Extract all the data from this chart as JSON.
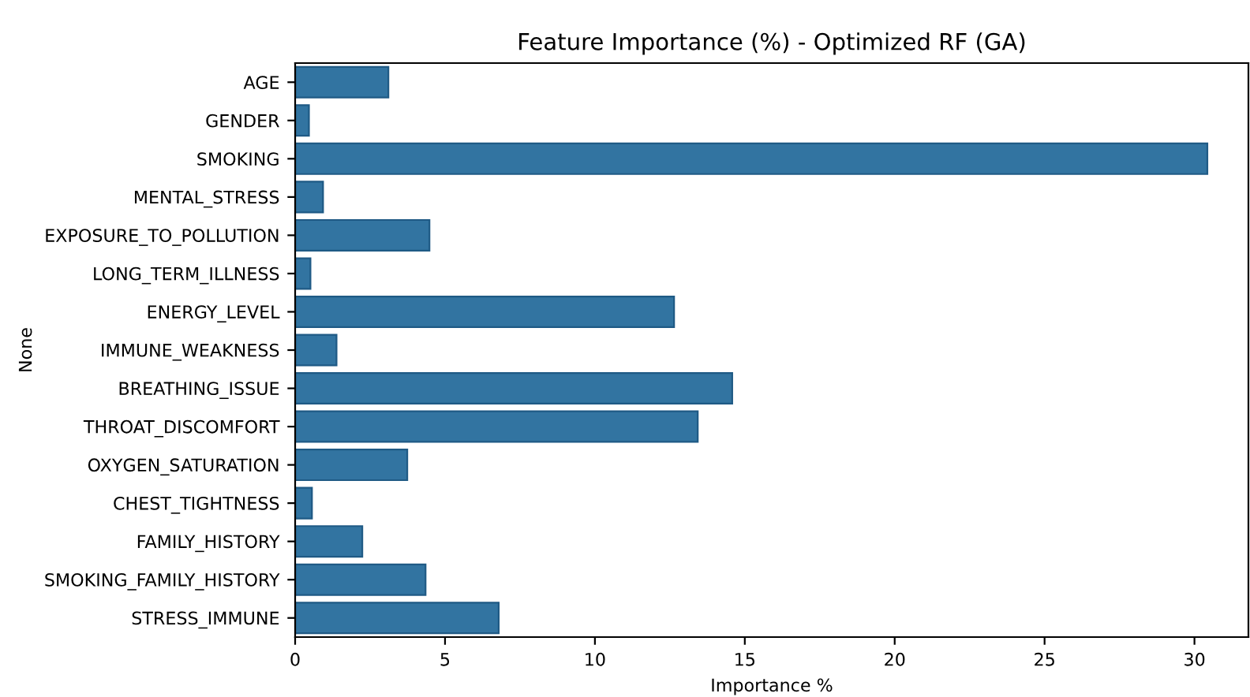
{
  "chart_data": {
    "type": "bar",
    "orientation": "horizontal",
    "title": "Feature Importance (%) - Optimized RF (GA)",
    "xlabel": "Importance %",
    "ylabel": "None",
    "categories": [
      "AGE",
      "GENDER",
      "SMOKING",
      "MENTAL_STRESS",
      "EXPOSURE_TO_POLLUTION",
      "LONG_TERM_ILLNESS",
      "ENERGY_LEVEL",
      "IMMUNE_WEAKNESS",
      "BREATHING_ISSUE",
      "THROAT_DISCOMFORT",
      "OXYGEN_SATURATION",
      "CHEST_TIGHTNESS",
      "FAMILY_HISTORY",
      "SMOKING_FAMILY_HISTORY",
      "STRESS_IMMUNE"
    ],
    "values": [
      3.11,
      0.46,
      30.43,
      0.93,
      4.48,
      0.51,
      12.64,
      1.38,
      14.58,
      13.43,
      3.74,
      0.56,
      2.24,
      4.35,
      6.79
    ],
    "color": "#3274a1",
    "xlim": [
      0,
      31.8
    ],
    "xticks": [
      0,
      5,
      10,
      15,
      20,
      25,
      30
    ],
    "grid": false,
    "legend": false
  }
}
